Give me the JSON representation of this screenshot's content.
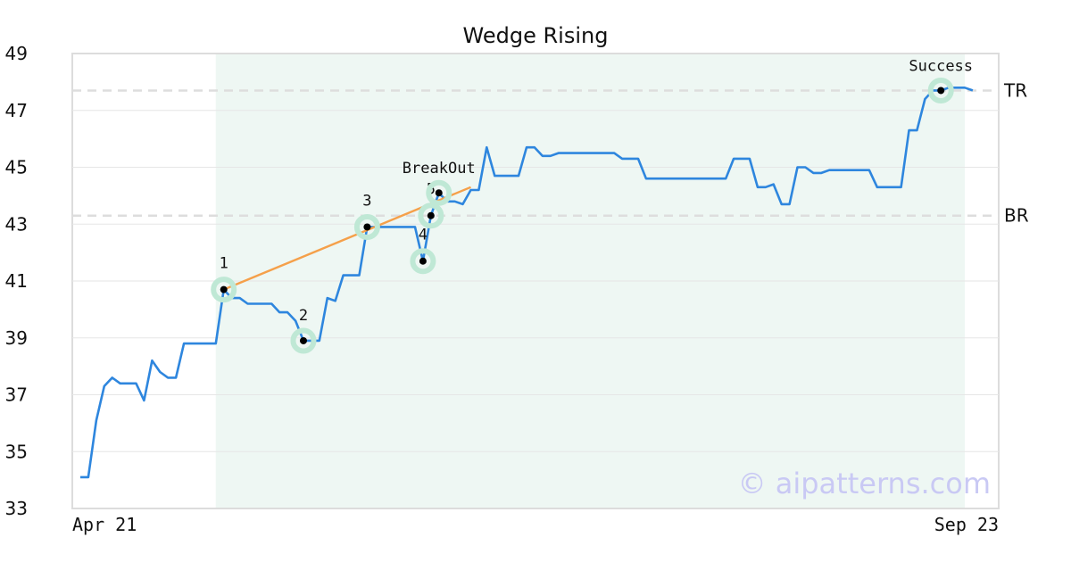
{
  "chart_data": {
    "type": "line",
    "title": "Wedge Rising",
    "watermark": "© aipatterns.com",
    "x_tick_labels": [
      "Apr 21",
      "Sep 23"
    ],
    "ylim": [
      33,
      49
    ],
    "y_ticks": [
      33,
      35,
      37,
      39,
      41,
      43,
      45,
      47,
      49
    ],
    "grid": true,
    "shaded_region": {
      "x_from": 17,
      "x_to": 111,
      "color": "#eef7f3"
    },
    "series": [
      {
        "color": "#2e86de",
        "x": [
          0,
          1,
          2,
          3,
          4,
          5,
          6,
          7,
          8,
          9,
          10,
          11,
          12,
          13,
          14,
          15,
          16,
          17,
          18,
          19,
          20,
          21,
          22,
          23,
          24,
          25,
          26,
          27,
          28,
          29,
          30,
          31,
          32,
          33,
          34,
          35,
          36,
          37,
          38,
          39,
          40,
          41,
          42,
          43,
          44,
          45,
          46,
          47,
          48,
          49,
          50,
          51,
          52,
          53,
          54,
          55,
          56,
          57,
          58,
          59,
          60,
          61,
          62,
          63,
          64,
          65,
          66,
          67,
          68,
          69,
          70,
          71,
          72,
          73,
          74,
          75,
          76,
          77,
          78,
          79,
          80,
          81,
          82,
          83,
          84,
          85,
          86,
          87,
          88,
          89,
          90,
          91,
          92,
          93,
          94,
          95,
          96,
          97,
          98,
          99,
          100,
          101,
          102,
          103,
          104,
          105,
          106,
          107,
          108,
          109,
          110,
          111,
          112
        ],
        "y": [
          34.1,
          34.1,
          36.1,
          37.3,
          37.6,
          37.4,
          37.4,
          37.4,
          36.8,
          38.2,
          37.8,
          37.6,
          37.6,
          38.8,
          38.8,
          38.8,
          38.8,
          38.8,
          40.7,
          40.4,
          40.4,
          40.2,
          40.2,
          40.2,
          40.2,
          39.9,
          39.9,
          39.6,
          38.9,
          38.9,
          38.9,
          40.4,
          40.3,
          41.2,
          41.2,
          41.2,
          42.9,
          42.9,
          42.9,
          42.9,
          42.9,
          42.9,
          42.9,
          41.7,
          43.3,
          44.1,
          43.8,
          43.8,
          43.7,
          44.2,
          44.2,
          45.7,
          44.7,
          44.7,
          44.7,
          44.7,
          45.7,
          45.7,
          45.4,
          45.4,
          45.5,
          45.5,
          45.5,
          45.5,
          45.5,
          45.5,
          45.5,
          45.5,
          45.3,
          45.3,
          45.3,
          44.6,
          44.6,
          44.6,
          44.6,
          44.6,
          44.6,
          44.6,
          44.6,
          44.6,
          44.6,
          44.6,
          45.3,
          45.3,
          45.3,
          44.3,
          44.3,
          44.4,
          43.7,
          43.7,
          45.0,
          45.0,
          44.8,
          44.8,
          44.9,
          44.9,
          44.9,
          44.9,
          44.9,
          44.9,
          44.3,
          44.3,
          44.3,
          44.3,
          46.3,
          46.3,
          47.4,
          47.7,
          47.7,
          47.8,
          47.8,
          47.8,
          47.7
        ]
      },
      {
        "color": "#f5a04a",
        "x": [
          18,
          49
        ],
        "y": [
          40.7,
          44.3
        ]
      }
    ],
    "levels": [
      {
        "label": "TR",
        "y": 47.7
      },
      {
        "label": "BR",
        "y": 43.3
      }
    ],
    "points": [
      {
        "label": "1",
        "x": 18,
        "y": 40.7
      },
      {
        "label": "2",
        "x": 28,
        "y": 38.9
      },
      {
        "label": "3",
        "x": 36,
        "y": 42.9
      },
      {
        "label": "4",
        "x": 43,
        "y": 41.7
      },
      {
        "label": "5",
        "x": 44,
        "y": 43.3
      },
      {
        "label": "BreakOut",
        "x": 45,
        "y": 44.1
      },
      {
        "label": "Success",
        "x": 108,
        "y": 47.7
      }
    ]
  }
}
